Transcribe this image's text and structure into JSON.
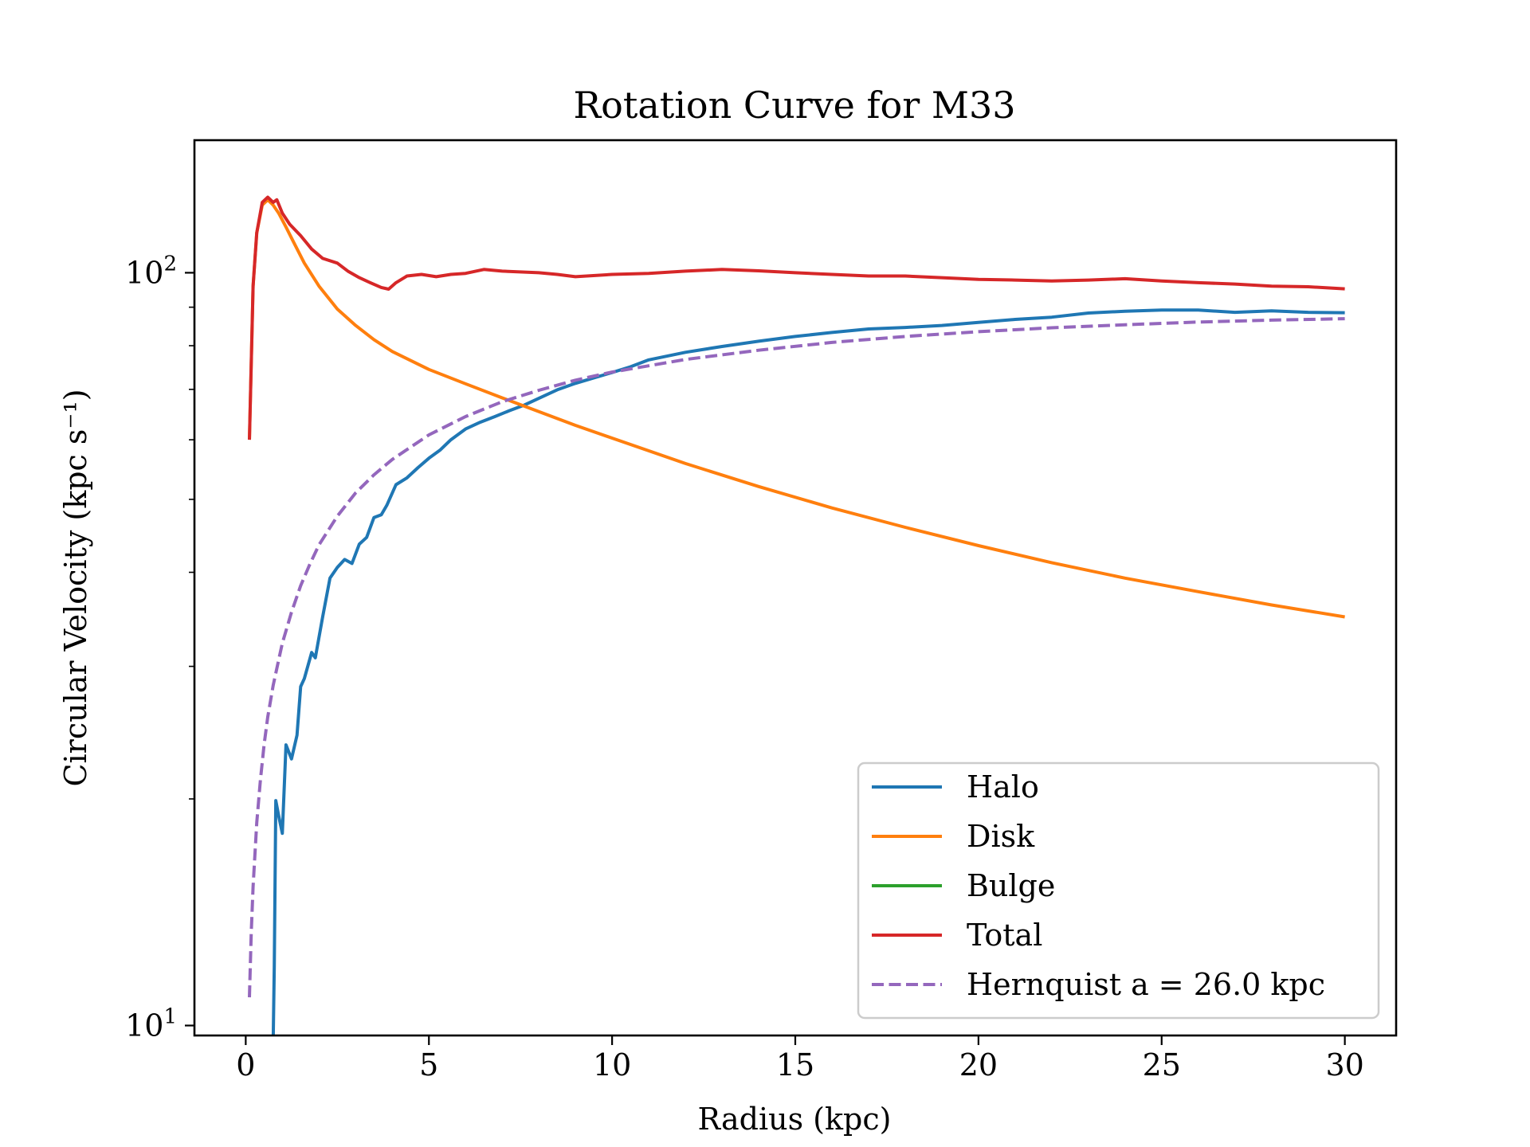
{
  "chart_data": {
    "type": "line",
    "title": "Rotation Curve for M33",
    "xlabel": "Radius (kpc)",
    "ylabel": "Circular Velocity (kpc s⁻¹)",
    "yscale": "log",
    "xlim": [
      -1.4,
      31.4
    ],
    "ylim": [
      9.7,
      150
    ],
    "xticks": [
      0,
      5,
      10,
      15,
      20,
      25,
      30
    ],
    "xtick_labels": [
      "0",
      "5",
      "10",
      "15",
      "20",
      "25",
      "30"
    ],
    "yticks": [
      10,
      100
    ],
    "ytick_labels": [
      {
        "base": "10",
        "exp": "1"
      },
      {
        "base": "10",
        "exp": "2"
      }
    ],
    "grid": false,
    "legend_position": "lower-right",
    "series": [
      {
        "name": "Halo",
        "color": "#1f77b4",
        "dash": "solid",
        "x": [
          0.75,
          0.78,
          0.82,
          0.9,
          1.0,
          1.1,
          1.25,
          1.4,
          1.5,
          1.6,
          1.8,
          1.9,
          2.1,
          2.3,
          2.5,
          2.7,
          2.9,
          3.1,
          3.3,
          3.5,
          3.7,
          3.85,
          4.1,
          4.4,
          4.7,
          5.0,
          5.3,
          5.6,
          6.0,
          6.4,
          6.8,
          7.2,
          7.6,
          8.0,
          8.5,
          9.0,
          9.5,
          10.0,
          10.5,
          11.0,
          12.0,
          13.0,
          14.0,
          15.0,
          16.0,
          17.0,
          18.0,
          19.0,
          20.0,
          21.0,
          22.0,
          23.0,
          24.0,
          25.0,
          26.0,
          27.0,
          28.0,
          29.0,
          30.0
        ],
        "y": [
          9.5,
          12,
          19.9,
          19.0,
          18.0,
          23.6,
          22.6,
          24.3,
          28.2,
          28.9,
          31.3,
          30.8,
          34.9,
          39.3,
          40.6,
          41.6,
          41.1,
          43.6,
          44.5,
          47.3,
          47.7,
          49.1,
          52.3,
          53.4,
          55.1,
          56.7,
          58.1,
          60.0,
          62.0,
          63.3,
          64.4,
          65.6,
          66.7,
          68.1,
          69.9,
          71.3,
          72.5,
          73.7,
          75.0,
          76.6,
          78.4,
          79.8,
          81.1,
          82.3,
          83.3,
          84.2,
          84.6,
          85.1,
          85.9,
          86.7,
          87.3,
          88.4,
          88.9,
          89.2,
          89.2,
          88.6,
          89.0,
          88.6,
          88.5
        ]
      },
      {
        "name": "Disk",
        "color": "#ff7f0e",
        "dash": "solid",
        "x": [
          0.1,
          0.2,
          0.3,
          0.45,
          0.6,
          0.75,
          0.9,
          1.1,
          1.3,
          1.6,
          2.0,
          2.5,
          3.0,
          3.5,
          4.0,
          5.0,
          6.0,
          7.0,
          8.0,
          9.0,
          10.0,
          12.0,
          14.0,
          16.0,
          18.0,
          20.0,
          22.0,
          24.0,
          26.0,
          28.0,
          30.0
        ],
        "y": [
          60.0,
          96.0,
          113,
          123,
          125,
          123,
          120,
          115,
          110,
          103,
          96,
          89.5,
          85.1,
          81.5,
          78.6,
          74.4,
          71.2,
          68.2,
          65.4,
          62.7,
          60.3,
          55.8,
          52.0,
          48.7,
          45.9,
          43.4,
          41.2,
          39.3,
          37.7,
          36.2,
          34.9
        ]
      },
      {
        "name": "Bulge",
        "color": "#2ca02c",
        "dash": "solid",
        "x": [],
        "y": []
      },
      {
        "name": "Total",
        "color": "#d62728",
        "dash": "solid",
        "x": [
          0.1,
          0.2,
          0.3,
          0.45,
          0.6,
          0.75,
          0.85,
          1.0,
          1.2,
          1.5,
          1.8,
          2.1,
          2.5,
          2.8,
          3.1,
          3.4,
          3.7,
          3.9,
          4.1,
          4.4,
          4.8,
          5.2,
          5.6,
          6.0,
          6.5,
          7.0,
          8.0,
          8.5,
          9.0,
          10.0,
          11.0,
          12.0,
          13.0,
          14.0,
          15.0,
          16.0,
          17.0,
          18.0,
          19.0,
          20.0,
          21.0,
          22.0,
          23.0,
          24.0,
          25.0,
          26.0,
          27.0,
          28.0,
          29.0,
          30.0
        ],
        "y": [
          60.0,
          96.0,
          113,
          124,
          126,
          124,
          125,
          120,
          116,
          112,
          107.5,
          104.5,
          103.0,
          100.4,
          98.5,
          97.0,
          95.6,
          95.1,
          97.0,
          99.0,
          99.5,
          98.8,
          99.5,
          99.8,
          101.0,
          100.5,
          100.0,
          99.5,
          98.8,
          99.5,
          99.8,
          100.5,
          101.0,
          100.6,
          100.0,
          99.5,
          99.0,
          99.0,
          98.5,
          98.0,
          97.8,
          97.5,
          97.8,
          98.2,
          97.5,
          97.0,
          96.6,
          96.0,
          95.8,
          95.2
        ]
      },
      {
        "name": "Hernquist a = 26.0 kpc",
        "color": "#9467bd",
        "dash": "dashed",
        "x": [
          0.1,
          0.15,
          0.2,
          0.3,
          0.4,
          0.5,
          0.6,
          0.75,
          0.9,
          1.0,
          1.25,
          1.5,
          1.75,
          2.0,
          2.5,
          3.0,
          3.5,
          4.0,
          5.0,
          6.0,
          7.0,
          8.0,
          9.0,
          10.0,
          12.0,
          14.0,
          16.0,
          18.0,
          20.0,
          22.0,
          24.0,
          26.0,
          28.0,
          30.0
        ],
        "y": [
          10.9,
          13.3,
          15.3,
          18.6,
          21.2,
          23.6,
          25.7,
          28.3,
          30.6,
          32.2,
          35.4,
          38.4,
          41.0,
          43.5,
          47.5,
          51.0,
          53.9,
          56.5,
          60.9,
          64.4,
          67.4,
          69.8,
          72.0,
          73.8,
          76.7,
          78.9,
          80.8,
          82.3,
          83.5,
          84.5,
          85.3,
          86.0,
          86.5,
          86.9
        ]
      }
    ]
  }
}
